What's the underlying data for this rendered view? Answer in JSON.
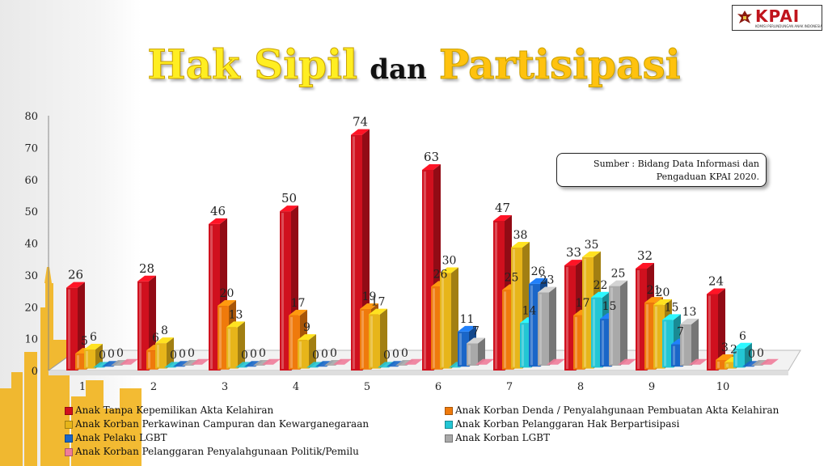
{
  "title": {
    "part1": "Hak Sipil",
    "part2": "dan",
    "part3": "Partisipasi"
  },
  "logo": {
    "text": "KPAI",
    "subtitle": "KOMISI PERLINDUNGAN ANAK INDONESIA"
  },
  "source": {
    "line1": "Sumber :  Bidang Data Informasi dan",
    "line2": "Pengaduan KPAI 2020."
  },
  "colors": {
    "red": "#d0101e",
    "orange": "#ef7a0c",
    "gold": "#e7b51a",
    "cyan": "#23c6d4",
    "blue": "#1a66c8",
    "gray": "#a9a9a9",
    "pink": "#f07c9a"
  },
  "chart_data": {
    "type": "bar",
    "categories": [
      "1",
      "2",
      "3",
      "4",
      "5",
      "6",
      "7",
      "8",
      "9",
      "10"
    ],
    "ylim": [
      0,
      80
    ],
    "yticks": [
      "0",
      "10",
      "20",
      "30",
      "40",
      "50",
      "60",
      "70",
      "80"
    ],
    "legend_placement": "bottom",
    "series": [
      {
        "name": "Anak Tanpa Kepemilikan Akta Kelahiran",
        "color": "#d0101e",
        "values": [
          26,
          28,
          46,
          50,
          74,
          63,
          47,
          33,
          32,
          24
        ]
      },
      {
        "name": "Anak Korban Denda / Penyalahgunaan Pembuatan Akta Kelahiran",
        "color": "#ef7a0c",
        "values": [
          5,
          6,
          20,
          17,
          19,
          26,
          25,
          17,
          21,
          3
        ]
      },
      {
        "name": "Anak Korban Perkawinan Campuran dan Kewarganegaraan",
        "color": "#e7b51a",
        "values": [
          6,
          8,
          13,
          9,
          17,
          30,
          38,
          35,
          20,
          2
        ]
      },
      {
        "name": "Anak Korban Pelanggaran Hak Berpartisipasi",
        "color": "#23c6d4",
        "values": [
          0,
          0,
          0,
          0,
          0,
          0,
          14,
          22,
          15,
          6
        ]
      },
      {
        "name": "Anak Pelaku LGBT",
        "color": "#1a66c8",
        "values": [
          0,
          0,
          0,
          0,
          0,
          11,
          26,
          15,
          7,
          0
        ]
      },
      {
        "name": "Anak Korban LGBT",
        "color": "#a9a9a9",
        "values": [
          0,
          0,
          0,
          0,
          0,
          7,
          23,
          25,
          13,
          0
        ]
      },
      {
        "name": "Anak Korban Pelanggaran Penyalahgunaan Politik/Pemilu",
        "color": "#f07c9a",
        "values": [
          0,
          0,
          0,
          0,
          0,
          0,
          0,
          0,
          0,
          0
        ]
      }
    ],
    "data_labels": [
      [
        "26",
        "5",
        "6",
        "0",
        "0",
        "0",
        "0"
      ],
      [
        "28",
        "6",
        "8",
        "0",
        "0",
        "0",
        "0"
      ],
      [
        "46",
        "20",
        "13",
        "0",
        "0",
        "0",
        "0"
      ],
      [
        "50",
        "17",
        "9",
        "0",
        "0",
        "0",
        "0"
      ],
      [
        "74",
        "19",
        "17",
        "0",
        "0",
        "0",
        "0"
      ],
      [
        "63",
        "26",
        "30",
        "",
        "11",
        "7",
        "0"
      ],
      [
        "47",
        "25",
        "38",
        "14",
        "26",
        "23",
        "0"
      ],
      [
        "33",
        "17",
        "35",
        "22",
        "15",
        "25",
        "0"
      ],
      [
        "32",
        "21",
        "20",
        "15",
        "7",
        "13",
        "0"
      ],
      [
        "24",
        "3",
        "2",
        "6",
        "0",
        "0",
        "0"
      ]
    ]
  }
}
